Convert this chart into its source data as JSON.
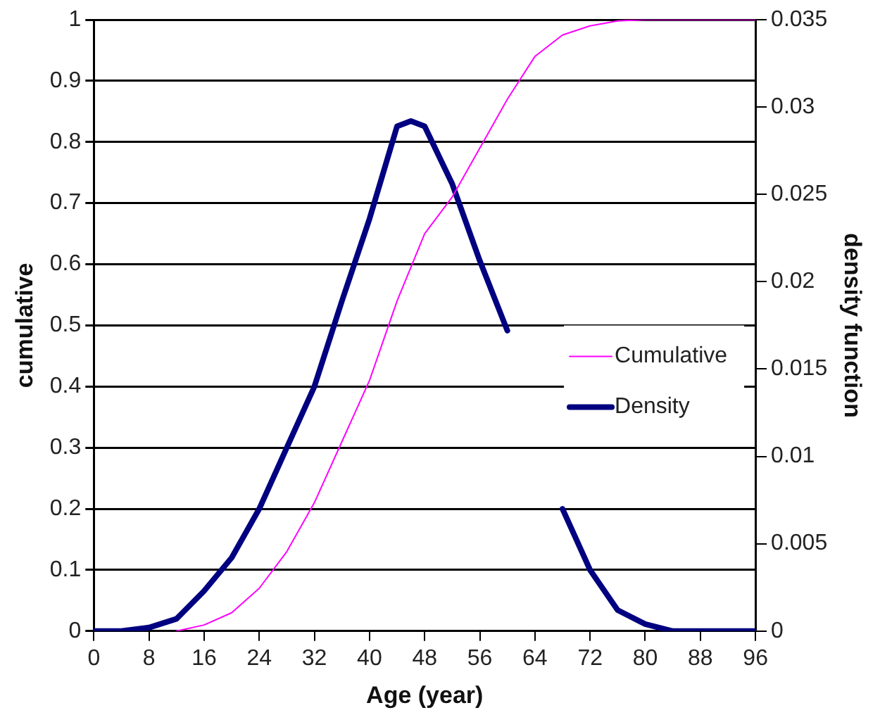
{
  "chart_data": {
    "type": "line",
    "xlabel": "Age (year)",
    "ylabel": "cumulative",
    "y2label": "density function",
    "xlim": [
      0,
      96
    ],
    "xticks": [
      0,
      8,
      16,
      24,
      32,
      40,
      48,
      56,
      64,
      72,
      80,
      88,
      96
    ],
    "ylim": [
      0,
      1
    ],
    "yticks": [
      0,
      0.1,
      0.2,
      0.3,
      0.4,
      0.5,
      0.6,
      0.7,
      0.8,
      0.9,
      1
    ],
    "y2lim": [
      0,
      0.035
    ],
    "y2ticks": [
      0,
      0.005,
      0.01,
      0.015,
      0.02,
      0.025,
      0.03,
      0.035
    ],
    "grid": "y",
    "legend": "right",
    "marker": "none",
    "line_style": "solid",
    "series": [
      {
        "name": "Cumulative",
        "color": "#ff00ff",
        "x": [
          12,
          16,
          20,
          24,
          28,
          32,
          36,
          40,
          44,
          48,
          52,
          56,
          60,
          64,
          68,
          72,
          76,
          80,
          84,
          88,
          92,
          96
        ],
        "values": [
          0,
          0.01,
          0.03,
          0.07,
          0.13,
          0.21,
          0.31,
          0.41,
          0.54,
          0.65,
          0.71,
          0.79,
          0.87,
          0.94,
          0.975,
          0.99,
          0.998,
          1,
          1,
          1,
          1,
          1
        ]
      },
      {
        "name": "Density",
        "color": "#000080",
        "axis": "y2",
        "x": [
          0,
          4,
          8,
          12,
          16,
          20,
          24,
          28,
          32,
          36,
          40,
          44,
          46,
          48,
          52,
          56,
          60,
          64,
          68,
          72,
          76,
          80,
          84,
          88,
          92,
          96
        ],
        "values": [
          0,
          0,
          0.0002,
          0.0007,
          0.0023,
          0.0042,
          0.007,
          0.0105,
          0.014,
          0.0189,
          0.0236,
          0.0289,
          0.0292,
          0.0289,
          0.0256,
          0.0212,
          0.0172,
          null,
          0.007,
          0.0035,
          0.0012,
          0.0004,
          0,
          0,
          0,
          0
        ]
      }
    ]
  }
}
